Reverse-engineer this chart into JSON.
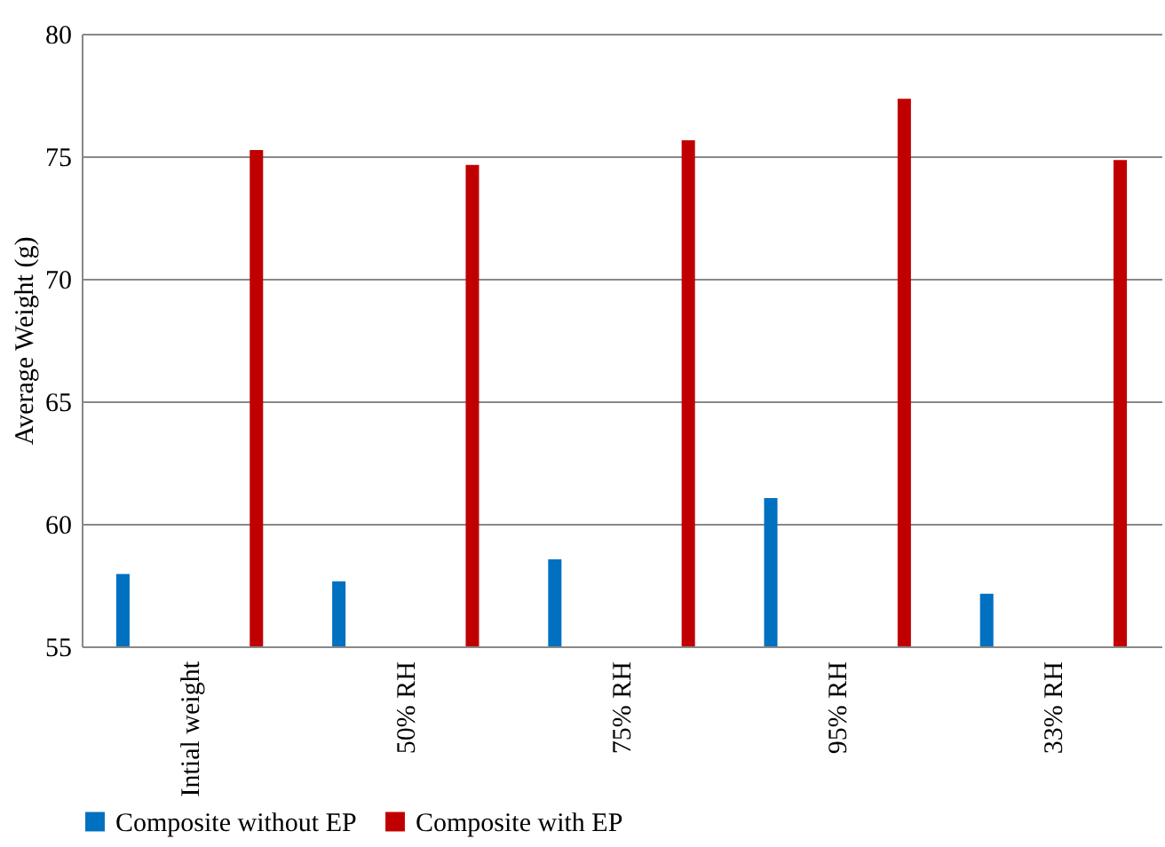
{
  "chart_data": {
    "type": "bar",
    "ylabel": "Average Weight (g)",
    "categories": [
      "Intial weight",
      "50% RH",
      "75% RH",
      "95% RH",
      "33% RH"
    ],
    "series": [
      {
        "name": "Composite without EP",
        "color": "#0070c0",
        "values": [
          57.95,
          57.65,
          58.55,
          61.05,
          57.15
        ]
      },
      {
        "name": "Composite with EP",
        "color": "#c00000",
        "values": [
          75.25,
          74.65,
          75.65,
          77.35,
          74.85
        ]
      }
    ],
    "ylim": [
      55,
      80
    ],
    "yticks": [
      55,
      60,
      65,
      70,
      75,
      80
    ],
    "grid": "y",
    "legend": "bottom"
  }
}
